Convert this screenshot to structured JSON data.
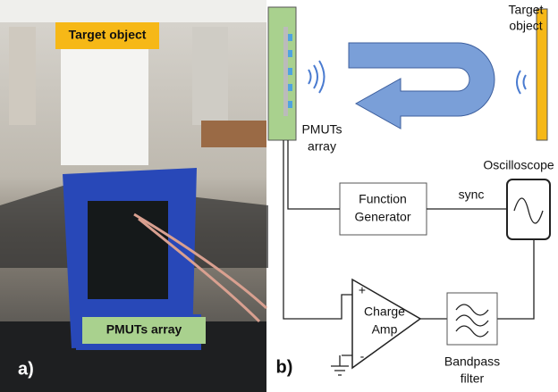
{
  "panel_a": {
    "label": "a)",
    "target_label": "Target object",
    "pmuts_label": "PMUTs array"
  },
  "panel_b": {
    "label": "b)",
    "target": [
      "Target",
      "object"
    ],
    "pmuts": [
      "PMUTs",
      "array"
    ],
    "oscilloscope": "Oscilloscope",
    "function_generator": [
      "Function",
      "Generator"
    ],
    "sync": "sync",
    "charge_amp": [
      "Charge",
      "Amp"
    ],
    "plus": "+",
    "minus": "-",
    "bandpass": [
      "Bandpass",
      "filter"
    ]
  }
}
